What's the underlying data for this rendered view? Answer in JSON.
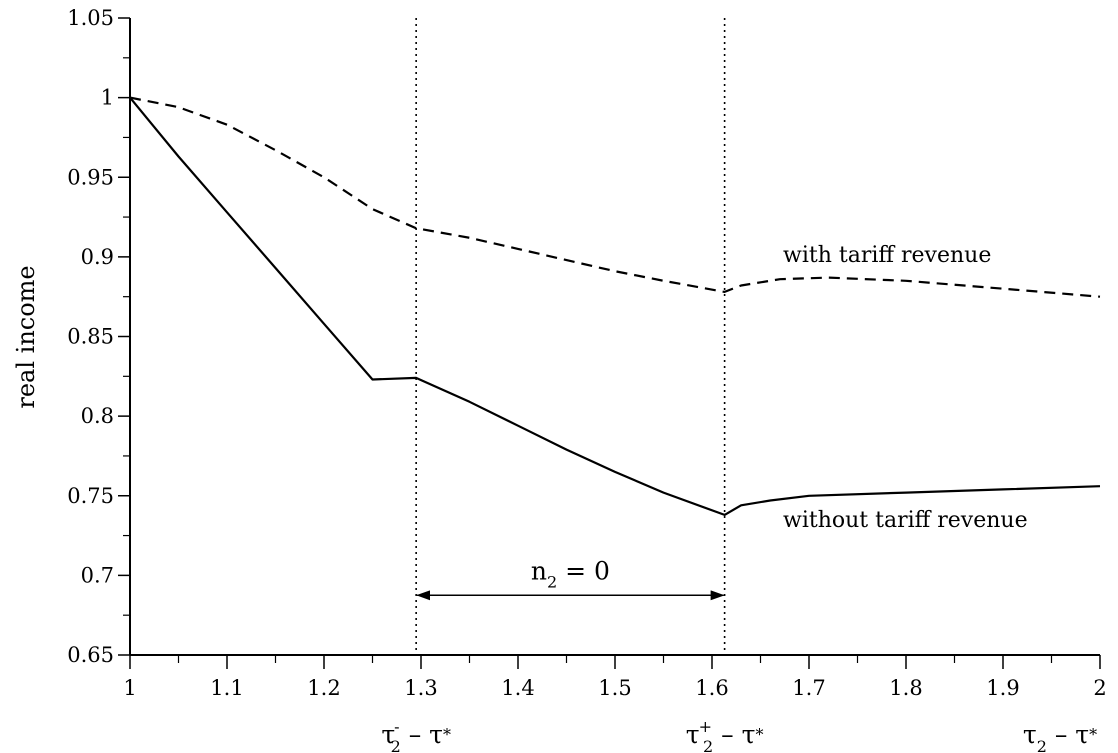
{
  "chart_data": {
    "type": "line",
    "title": "",
    "xlabel": "",
    "ylabel": "real income",
    "xlim": [
      1,
      2
    ],
    "ylim": [
      0.65,
      1.05
    ],
    "grid": false,
    "x_ticks": [
      1,
      1.1,
      1.2,
      1.3,
      1.4,
      1.5,
      1.6,
      1.7,
      1.8,
      1.9,
      2
    ],
    "x_tick_labels": [
      "1",
      "1.1",
      "1.2",
      "1.3",
      "1.4",
      "1.5",
      "1.6",
      "1.7",
      "1.8",
      "1.9",
      "2"
    ],
    "y_ticks": [
      0.65,
      0.7,
      0.75,
      0.8,
      0.85,
      0.9,
      0.95,
      1.0,
      1.05
    ],
    "y_tick_labels": [
      "0.65",
      "0.7",
      "0.75",
      "0.8",
      "0.85",
      "0.9",
      "0.95",
      "1",
      "1.05"
    ],
    "series": [
      {
        "name": "with tariff revenue",
        "style": "dashed",
        "color": "#000000",
        "points": [
          [
            1.0,
            1.0
          ],
          [
            1.05,
            0.994
          ],
          [
            1.1,
            0.983
          ],
          [
            1.15,
            0.967
          ],
          [
            1.2,
            0.95
          ],
          [
            1.25,
            0.93
          ],
          [
            1.295,
            0.918
          ],
          [
            1.35,
            0.912
          ],
          [
            1.4,
            0.905
          ],
          [
            1.45,
            0.898
          ],
          [
            1.5,
            0.891
          ],
          [
            1.55,
            0.885
          ],
          [
            1.613,
            0.878
          ],
          [
            1.63,
            0.882
          ],
          [
            1.67,
            0.886
          ],
          [
            1.72,
            0.887
          ],
          [
            1.8,
            0.885
          ],
          [
            1.9,
            0.88
          ],
          [
            2.0,
            0.875
          ]
        ]
      },
      {
        "name": "without tariff revenue",
        "style": "solid",
        "color": "#000000",
        "points": [
          [
            1.0,
            1.0
          ],
          [
            1.05,
            0.963
          ],
          [
            1.1,
            0.928
          ],
          [
            1.15,
            0.893
          ],
          [
            1.2,
            0.858
          ],
          [
            1.25,
            0.823
          ],
          [
            1.295,
            0.824
          ],
          [
            1.35,
            0.809
          ],
          [
            1.4,
            0.794
          ],
          [
            1.45,
            0.779
          ],
          [
            1.5,
            0.765
          ],
          [
            1.55,
            0.752
          ],
          [
            1.613,
            0.738
          ],
          [
            1.63,
            0.744
          ],
          [
            1.66,
            0.747
          ],
          [
            1.7,
            0.75
          ],
          [
            1.8,
            0.752
          ],
          [
            1.9,
            0.754
          ],
          [
            2.0,
            0.756
          ]
        ]
      }
    ],
    "vertical_markers": [
      {
        "x": 1.295,
        "style": "dotted",
        "label_main": "τ",
        "label_sub": "2",
        "label_sup": "-",
        "label_rest": " – τ",
        "label_star": "*"
      },
      {
        "x": 1.613,
        "style": "dotted",
        "label_main": "τ",
        "label_sub": "2",
        "label_sup": "+",
        "label_rest": " – τ",
        "label_star": "*"
      }
    ],
    "x_axis_variable": {
      "main": "τ",
      "sub": "2",
      "rest": " – τ",
      "star": "*"
    },
    "interval_annotation": {
      "from": 1.295,
      "to": 1.613,
      "y": 0.69,
      "text_main": "n",
      "text_sub": "2",
      "text_rest": " = 0"
    },
    "series_labels": [
      {
        "series": "with tariff revenue",
        "text": "with tariff revenue"
      },
      {
        "series": "without tariff revenue",
        "text": "without tariff revenue"
      }
    ]
  }
}
